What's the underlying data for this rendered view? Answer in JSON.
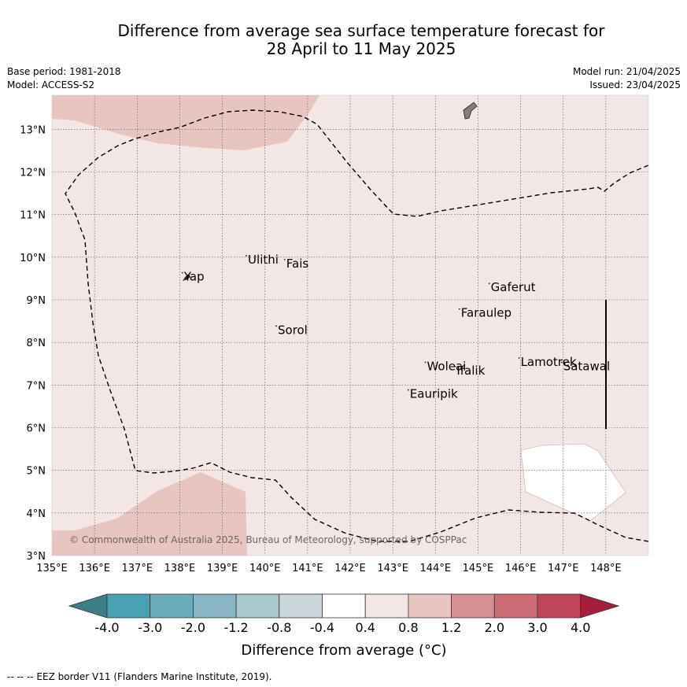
{
  "title": {
    "line1": "Difference from average sea surface temperature forecast for",
    "line2": "28 April to 11 May 2025"
  },
  "meta": {
    "base_period": "Base period: 1981-2018",
    "model": "Model: ACCESS-S2",
    "model_run": "Model run: 21/04/2025",
    "issued": "Issued: 23/04/2025"
  },
  "map": {
    "lon_range": [
      135,
      149
    ],
    "lat_range": [
      3,
      13.8
    ],
    "lon_ticks": [
      "135°E",
      "136°E",
      "137°E",
      "138°E",
      "139°E",
      "140°E",
      "141°E",
      "142°E",
      "143°E",
      "144°E",
      "145°E",
      "146°E",
      "147°E",
      "148°E"
    ],
    "lat_ticks": [
      "3°N",
      "4°N",
      "5°N",
      "6°N",
      "7°N",
      "8°N",
      "9°N",
      "10°N",
      "11°N",
      "12°N",
      "13°N"
    ],
    "background_color": "#f3e7e6",
    "anomaly_color": "#e7c6c2",
    "land_color": "#8a7a7a",
    "places": [
      {
        "name": "Ulithi",
        "lon": 139.6,
        "lat": 9.85
      },
      {
        "name": "Fais",
        "lon": 140.5,
        "lat": 9.76
      },
      {
        "name": "Yap",
        "lon": 138.1,
        "lat": 9.45
      },
      {
        "name": "Gaferut",
        "lon": 145.3,
        "lat": 9.2
      },
      {
        "name": "Faraulep",
        "lon": 144.6,
        "lat": 8.6
      },
      {
        "name": "Sorol",
        "lon": 140.3,
        "lat": 8.2
      },
      {
        "name": "Lamotrek",
        "lon": 146.0,
        "lat": 7.45
      },
      {
        "name": "Woleai",
        "lon": 143.8,
        "lat": 7.35
      },
      {
        "name": "Ifalik",
        "lon": 144.5,
        "lat": 7.25
      },
      {
        "name": "Satawal",
        "lon": 147.0,
        "lat": 7.35
      },
      {
        "name": "Eauripik",
        "lon": 143.4,
        "lat": 6.7
      }
    ],
    "copyright": "© Commonwealth of Australia 2025, Bureau of Meteorology, supported by COSPPac"
  },
  "colorbar": {
    "labels": [
      "-4.0",
      "-3.0",
      "-2.0",
      "-1.2",
      "-0.8",
      "-0.4",
      "0.4",
      "0.8",
      "1.2",
      "2.0",
      "3.0",
      "4.0"
    ],
    "colors": [
      "#48a2b2",
      "#69adbb",
      "#88b6c2",
      "#a8c8cd",
      "#cbd7db",
      "#ffffff",
      "#f3e7e6",
      "#e7c6c2",
      "#d78f95",
      "#cc6c75",
      "#be4658"
    ],
    "under_color": "#3c7d86",
    "over_color": "#a61c3c",
    "title": "Difference from average (°C)"
  },
  "footer": "--  --  -- EEZ border V11 (Flanders Marine Institute, 2019)."
}
